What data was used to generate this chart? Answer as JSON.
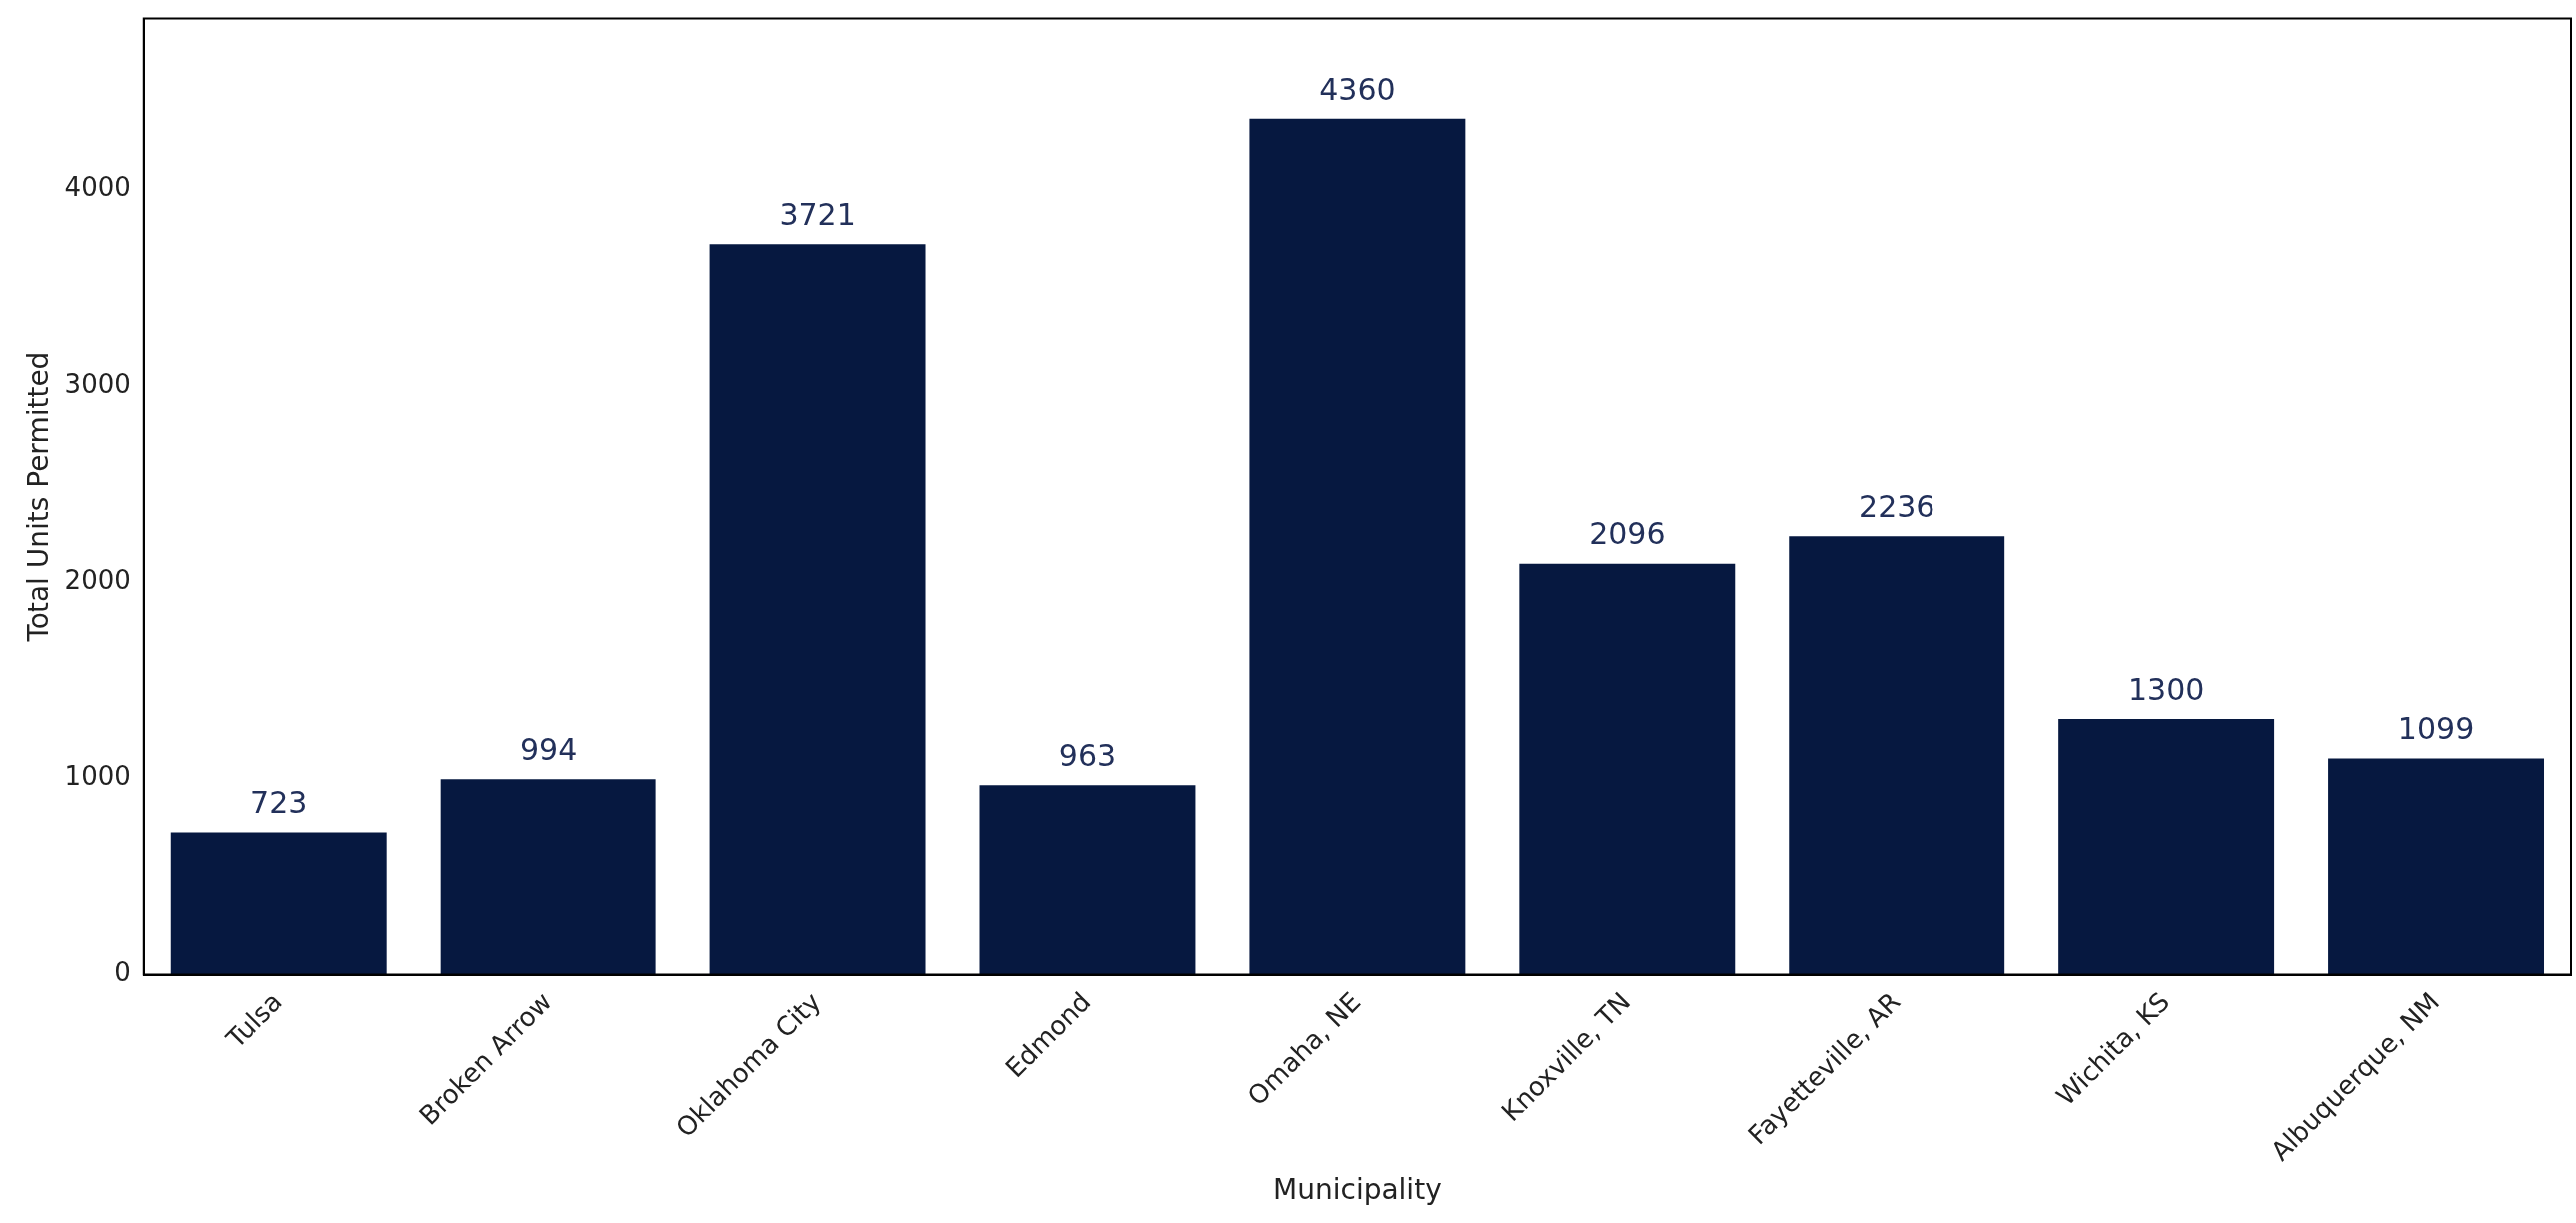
{
  "chart_data": {
    "type": "bar",
    "xlabel": "Municipality",
    "ylabel": "Total Units Permitted",
    "categories": [
      "Tulsa",
      "Broken Arrow",
      "Oklahoma City",
      "Edmond",
      "Omaha, NE",
      "Knoxville, TN",
      "Fayetteville, AR",
      "Wichita, KS",
      "Albuquerque, NM"
    ],
    "values": [
      723,
      994,
      3721,
      963,
      4360,
      2096,
      2236,
      1300,
      1099
    ],
    "color": "#061840",
    "ylim": [
      0,
      4870
    ],
    "yticks": [
      0,
      1000,
      2000,
      3000,
      4000
    ],
    "grid": false,
    "legend": false,
    "data_labels": true
  }
}
